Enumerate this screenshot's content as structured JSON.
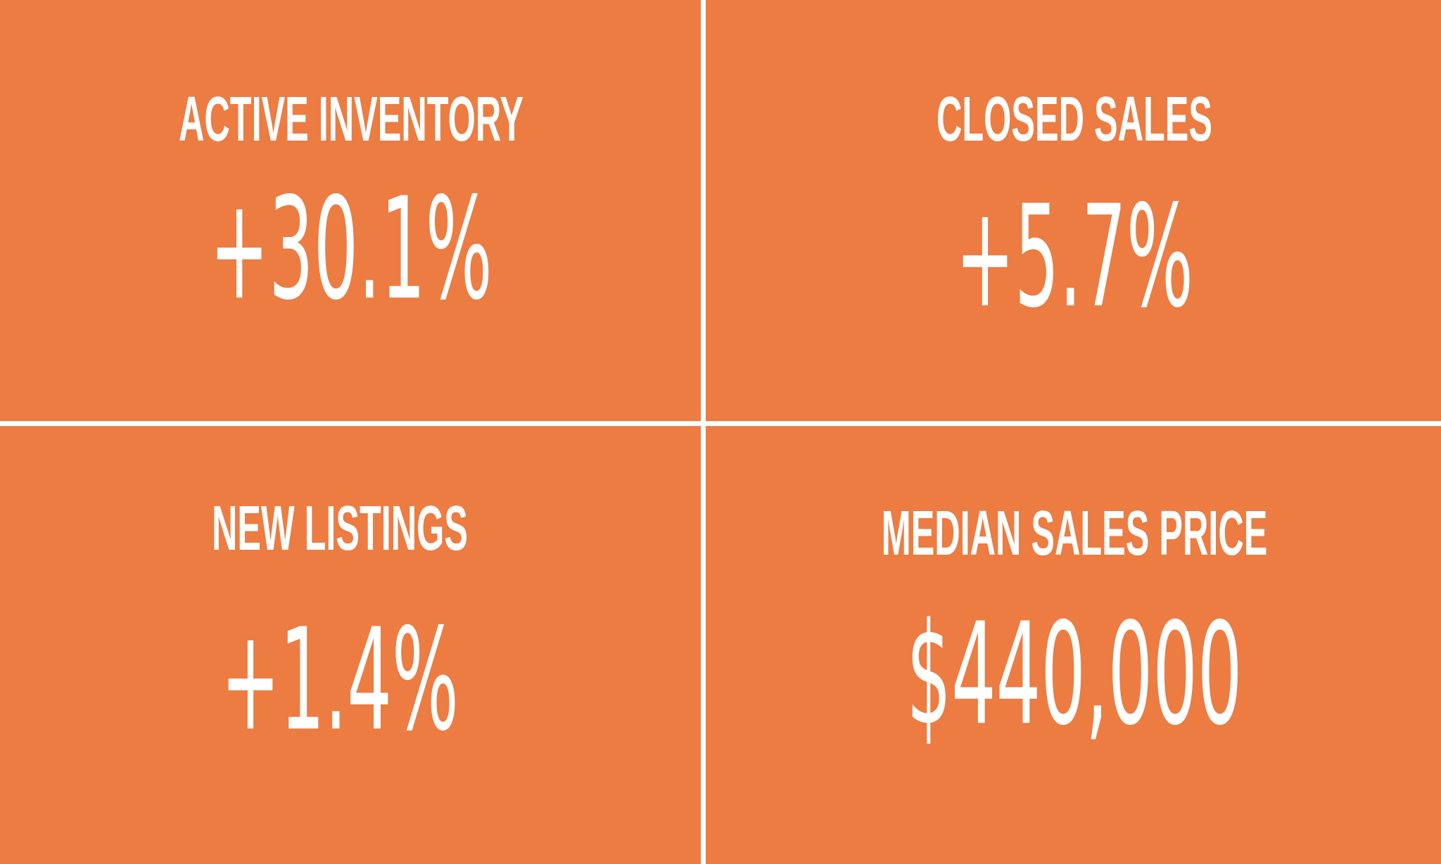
{
  "tiles": [
    {
      "label": "ACTIVE INVENTORY",
      "value": "+30.1%"
    },
    {
      "label": "CLOSED SALES",
      "value": "+5.7%"
    },
    {
      "label": "NEW LISTINGS",
      "value": "+1.4%"
    },
    {
      "label": "MEDIAN SALES PRICE",
      "value": "$440,000"
    }
  ]
}
